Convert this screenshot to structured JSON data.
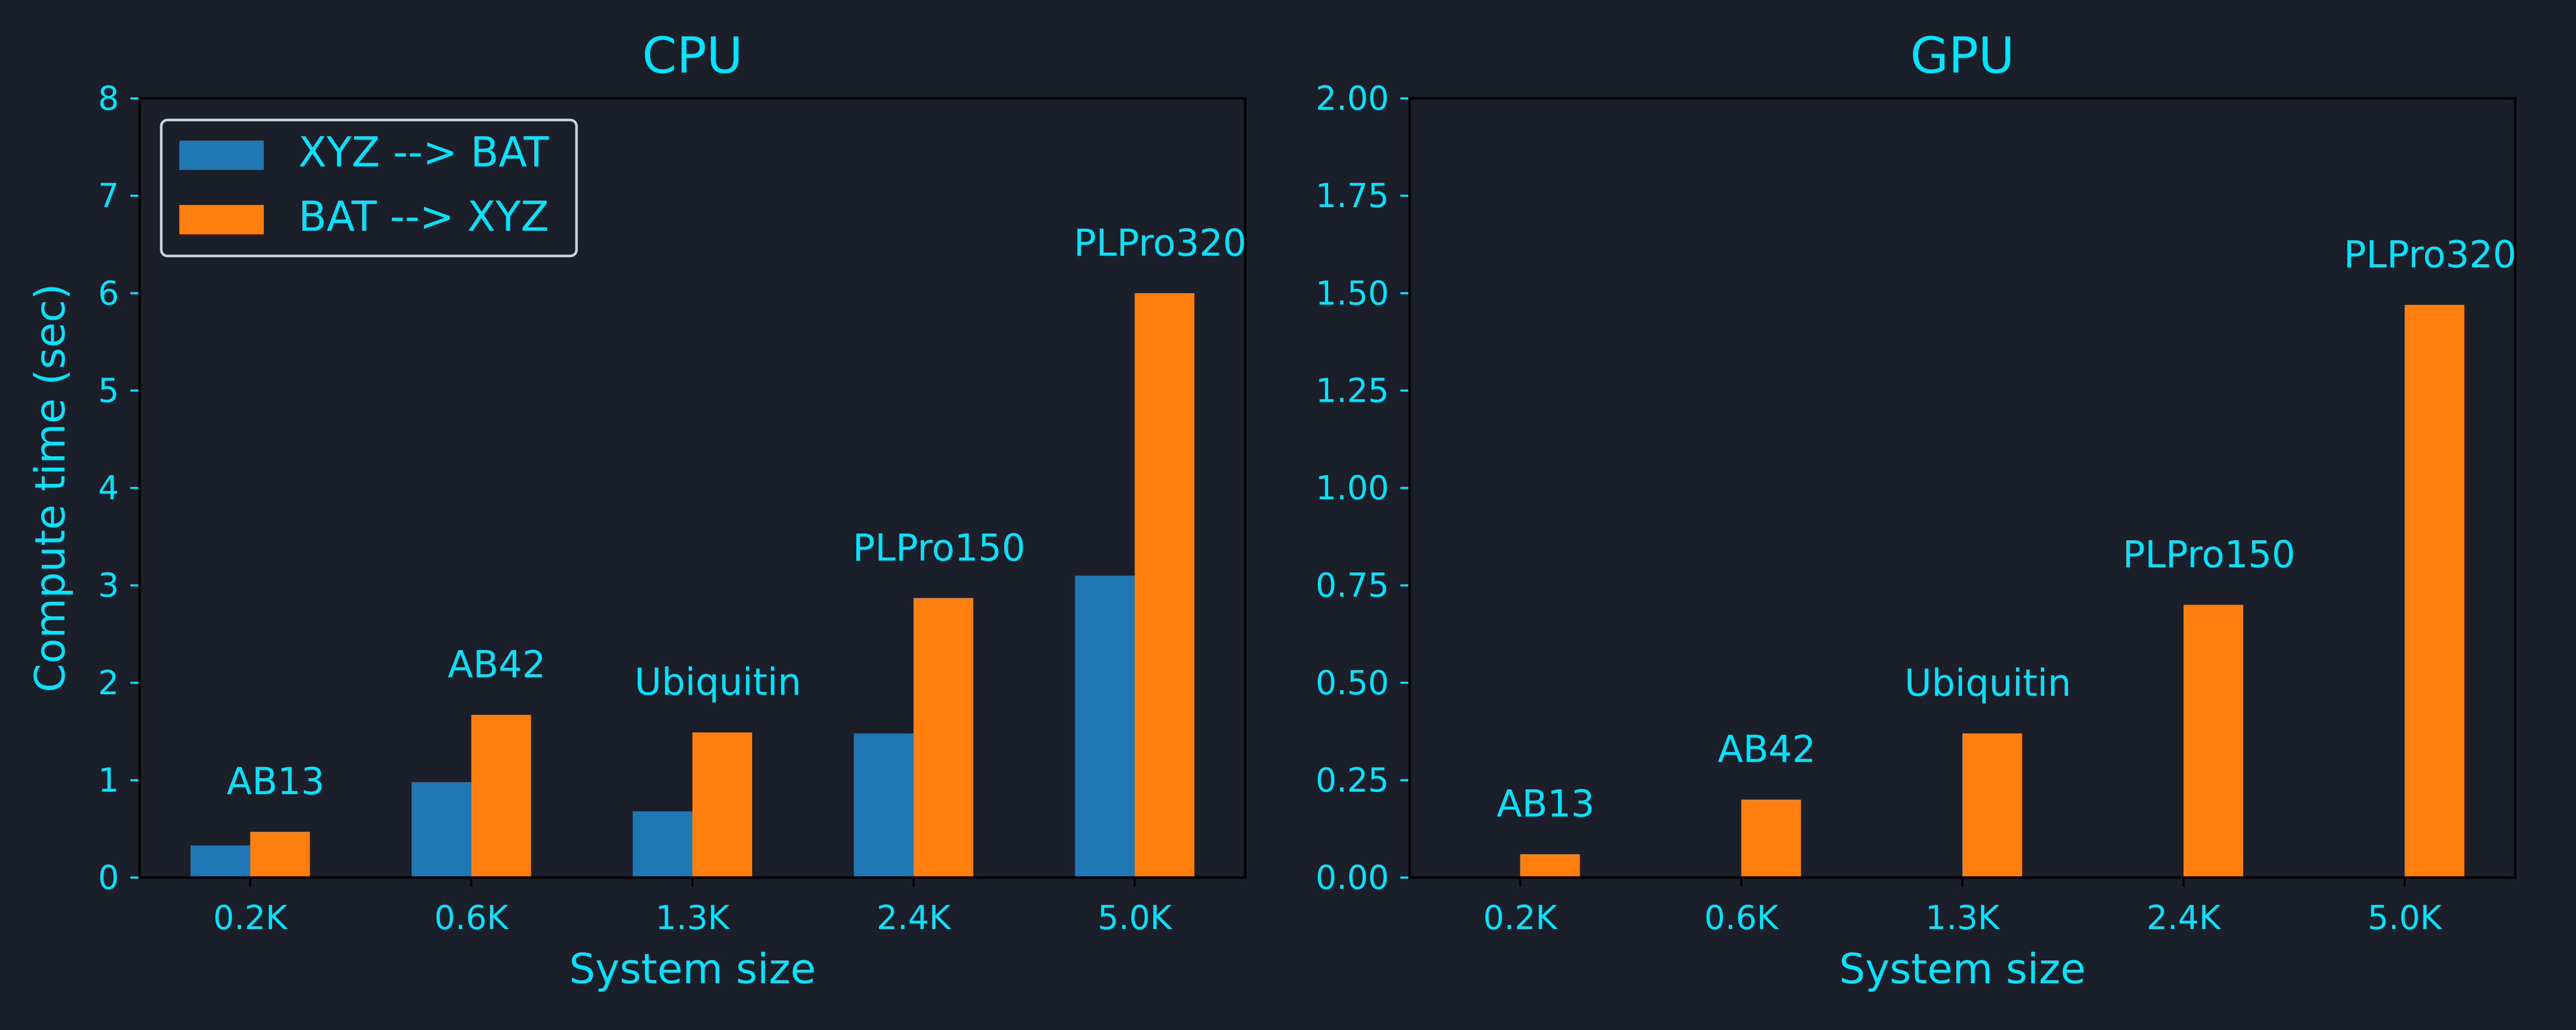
{
  "theme": {
    "background": "#1b1f2a",
    "text_color": "#00e5ff",
    "axis_color": "#000000",
    "legend_border": "#cfd4da"
  },
  "chart_data": [
    {
      "type": "bar",
      "title": "CPU",
      "xlabel": "System size",
      "ylabel": "Compute time (sec)",
      "categories": [
        "0.2K",
        "0.6K",
        "1.3K",
        "2.4K",
        "5.0K"
      ],
      "bar_labels": [
        "AB13",
        "AB42",
        "Ubiquitin",
        "PLPro150",
        "PLPro320"
      ],
      "series": [
        {
          "name": "XYZ --> BAT",
          "color": "#1f77b4",
          "values": [
            0.33,
            0.98,
            0.68,
            1.48,
            3.1
          ]
        },
        {
          "name": "BAT --> XYZ",
          "color": "#ff7f0e",
          "values": [
            0.47,
            1.67,
            1.49,
            2.87,
            6.0
          ]
        }
      ],
      "ylim": [
        0,
        8
      ],
      "yticks": [
        "0",
        "1",
        "2",
        "3",
        "4",
        "5",
        "6",
        "7",
        "8"
      ],
      "grid": false,
      "legend": "top-left"
    },
    {
      "type": "bar",
      "title": "GPU",
      "xlabel": "System size",
      "ylabel": "",
      "categories": [
        "0.2K",
        "0.6K",
        "1.3K",
        "2.4K",
        "5.0K"
      ],
      "bar_labels": [
        "AB13",
        "AB42",
        "Ubiquitin",
        "PLPro150",
        "PLPro320"
      ],
      "series": [
        {
          "name": "XYZ --> BAT",
          "color": "#1f77b4",
          "values": [
            0,
            0,
            0,
            0,
            0
          ]
        },
        {
          "name": "BAT --> XYZ",
          "color": "#ff7f0e",
          "values": [
            0.06,
            0.2,
            0.37,
            0.7,
            1.47
          ]
        }
      ],
      "ylim": [
        0,
        2
      ],
      "yticks": [
        "0.00",
        "0.25",
        "0.50",
        "0.75",
        "1.00",
        "1.25",
        "1.50",
        "1.75",
        "2.00"
      ],
      "grid": false,
      "legend": "none"
    }
  ]
}
